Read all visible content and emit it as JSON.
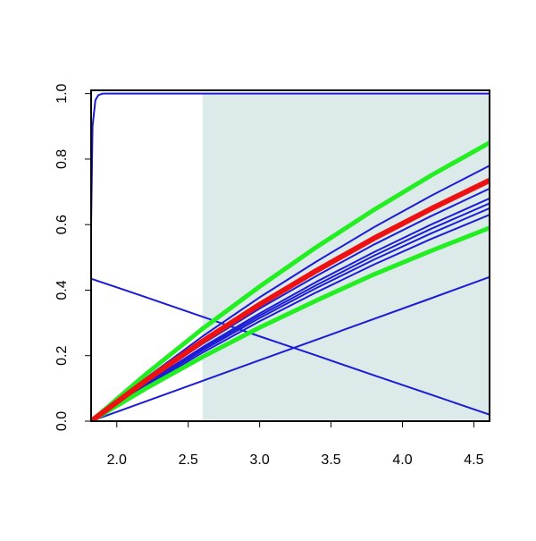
{
  "chart_data": {
    "type": "line",
    "x": [
      1.82,
      2.2,
      2.6,
      3.0,
      3.4,
      3.8,
      4.2,
      4.61
    ],
    "xlim": [
      1.82,
      4.61
    ],
    "ylim": [
      0,
      1.01
    ],
    "xticks": [
      {
        "value": 2,
        "label": "2.0"
      },
      {
        "value": 2.5,
        "label": "2.5"
      },
      {
        "value": 3,
        "label": "3.0"
      },
      {
        "value": 3.5,
        "label": "3.5"
      },
      {
        "value": 4,
        "label": "4.0"
      },
      {
        "value": 4.5,
        "label": "4.5"
      }
    ],
    "yticks": [
      {
        "value": 0,
        "label": "0.0"
      },
      {
        "value": 0.2,
        "label": "0.2"
      },
      {
        "value": 0.4,
        "label": "0.4"
      },
      {
        "value": 0.6,
        "label": "0.6"
      },
      {
        "value": 0.8,
        "label": "0.8"
      },
      {
        "value": 1,
        "label": "1.0"
      }
    ],
    "shaded_region": {
      "x": [
        2.6,
        4.61
      ],
      "y": [
        0,
        1
      ],
      "color": "#ddeaea"
    },
    "series": [
      {
        "color": "#1c1cd6",
        "line_width": 2,
        "x": [
          1.82,
          1.83,
          1.85,
          1.87,
          1.9,
          4.61
        ],
        "values": [
          0.6,
          0.9,
          0.98,
          0.995,
          1.0,
          1.0
        ]
      },
      {
        "color": "#1c1cd6",
        "line_width": 2,
        "values": [
          0,
          0.13,
          0.259,
          0.378,
          0.488,
          0.592,
          0.688,
          0.78
        ]
      },
      {
        "color": "#1c1cd6",
        "line_width": 2,
        "values": [
          0,
          0.119,
          0.236,
          0.344,
          0.444,
          0.539,
          0.626,
          0.71
        ]
      },
      {
        "color": "#1c1cd6",
        "line_width": 2,
        "values": [
          0,
          0.114,
          0.226,
          0.329,
          0.426,
          0.516,
          0.6,
          0.68
        ]
      },
      {
        "color": "#1c1cd6",
        "line_width": 2,
        "values": [
          0,
          0.111,
          0.221,
          0.322,
          0.416,
          0.505,
          0.587,
          0.665
        ]
      },
      {
        "color": "#1c1cd6",
        "line_width": 2,
        "values": [
          0,
          0.109,
          0.216,
          0.315,
          0.407,
          0.493,
          0.573,
          0.65
        ]
      },
      {
        "color": "#1c1cd6",
        "line_width": 2,
        "values": [
          0,
          0.105,
          0.209,
          0.305,
          0.394,
          0.478,
          0.556,
          0.63
        ]
      },
      {
        "color": "#1c1cd6",
        "line_width": 2,
        "values": [
          0,
          0.06,
          0.123,
          0.186,
          0.249,
          0.312,
          0.375,
          0.44
        ]
      },
      {
        "color": "#1c1cd6",
        "line_width": 2,
        "values": [
          0.435,
          0.379,
          0.319,
          0.259,
          0.2,
          0.14,
          0.081,
          0.02
        ]
      },
      {
        "color": "#22ee22",
        "line_width": 5,
        "values": [
          0,
          0.142,
          0.282,
          0.411,
          0.532,
          0.645,
          0.75,
          0.85
        ]
      },
      {
        "color": "#22ee22",
        "line_width": 5,
        "values": [
          0,
          0.099,
          0.196,
          0.286,
          0.369,
          0.448,
          0.52,
          0.59
        ]
      },
      {
        "color": "#ee1111",
        "line_width": 6,
        "values": [
          0,
          0.123,
          0.244,
          0.356,
          0.46,
          0.558,
          0.648,
          0.735
        ]
      }
    ]
  }
}
